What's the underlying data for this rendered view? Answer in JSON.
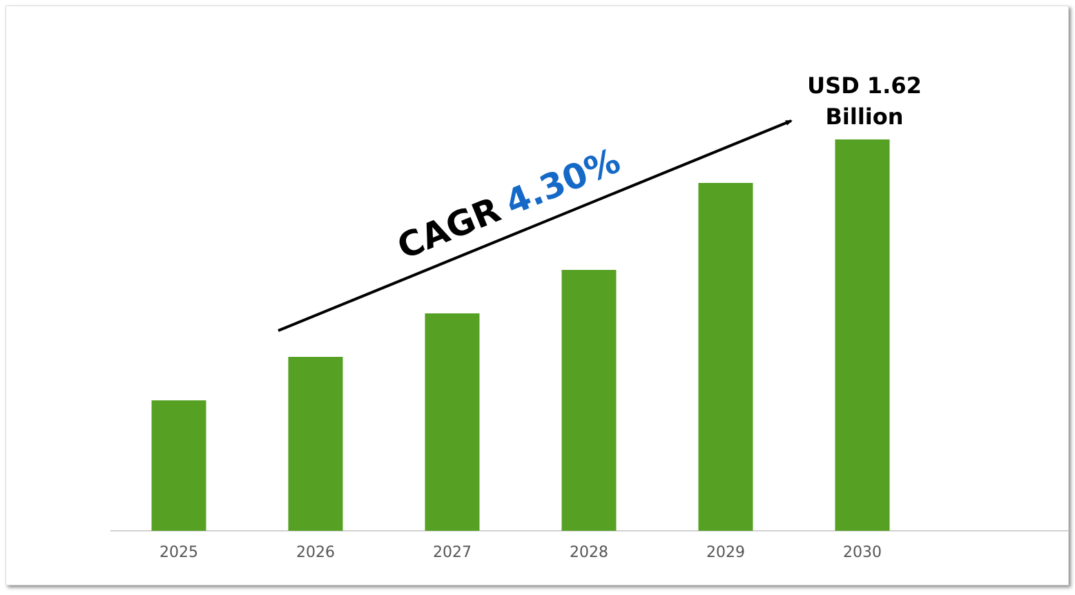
{
  "chart_data": {
    "type": "bar",
    "categories": [
      "2025",
      "2026",
      "2027",
      "2028",
      "2029",
      "2030"
    ],
    "values": [
      0.54,
      0.72,
      0.9,
      1.08,
      1.44,
      1.62
    ],
    "value_labels": [
      null,
      null,
      null,
      null,
      null,
      "USD 1.62 Billion"
    ],
    "color": "#56a024",
    "annotation": {
      "label": "CAGR",
      "value": "4.30%",
      "value_color": "#1569c7"
    }
  }
}
